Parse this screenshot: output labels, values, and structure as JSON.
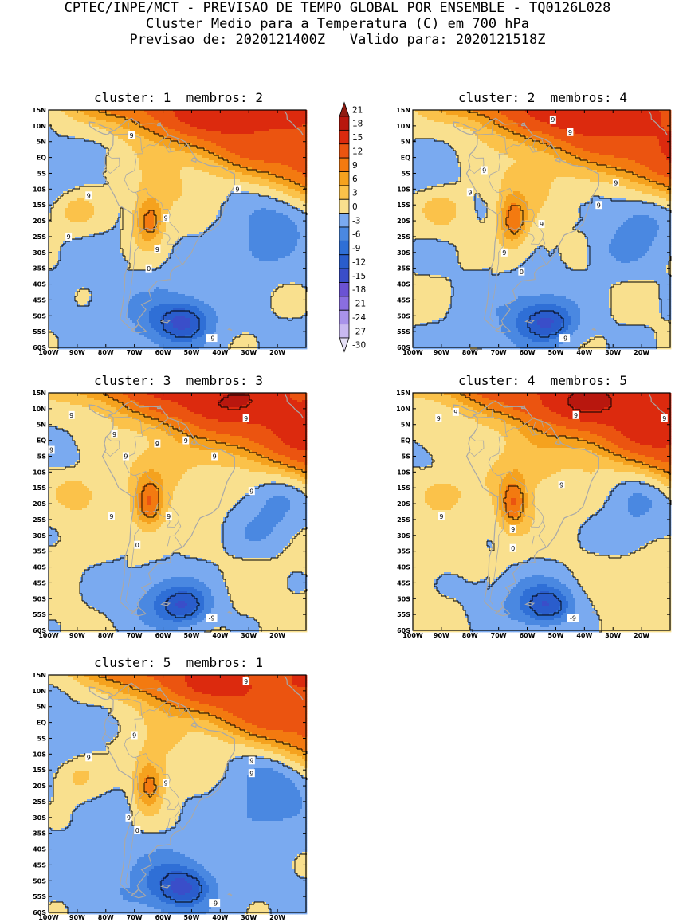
{
  "header": {
    "line1": "CPTEC/INPE/MCT - PREVISAO DE TEMPO GLOBAL POR ENSEMBLE - TQ0126L028",
    "line2": "Cluster Medio para a Temperatura (C) em 700 hPa",
    "line3": "Previsao de: 2020121400Z   Valido para: 2020121518Z"
  },
  "colors": {
    "levels": [
      {
        "min": -30,
        "color": "#e6e1f7"
      },
      {
        "min": -27,
        "color": "#c9b9f1"
      },
      {
        "min": -24,
        "color": "#a993ea"
      },
      {
        "min": -21,
        "color": "#8a6ee0"
      },
      {
        "min": -18,
        "color": "#6b52d3"
      },
      {
        "min": -15,
        "color": "#3a4ec9"
      },
      {
        "min": -12,
        "color": "#2a5dcc"
      },
      {
        "min": -9,
        "color": "#2f6fd6"
      },
      {
        "min": -6,
        "color": "#4a88e1"
      },
      {
        "min": -3,
        "color": "#7aaaf0"
      },
      {
        "min": 0,
        "color": "#f9e08e"
      },
      {
        "min": 3,
        "color": "#fbc24a"
      },
      {
        "min": 6,
        "color": "#f5a21e"
      },
      {
        "min": 9,
        "color": "#f37a10"
      },
      {
        "min": 12,
        "color": "#eb5410"
      },
      {
        "min": 15,
        "color": "#dc2a0e"
      },
      {
        "min": 18,
        "color": "#b8170e"
      },
      {
        "min": 21,
        "color": "#901c12"
      }
    ],
    "coast": "#a8a8a8",
    "contour": "#000000"
  },
  "chart_data": {
    "type": "heatmap",
    "variable": "Temperatura (C) em 700 hPa",
    "colorbar": {
      "ticks": [
        "21",
        "18",
        "15",
        "12",
        "9",
        "6",
        "3",
        "0",
        "-3",
        "-6",
        "-9",
        "-12",
        "-15",
        "-18",
        "-21",
        "-24",
        "-27",
        "-30"
      ]
    },
    "axes": {
      "x_range_lon": [
        -100,
        -10
      ],
      "y_range_lat": [
        -60,
        15
      ],
      "x_ticks": [
        "100W",
        "90W",
        "80W",
        "70W",
        "60W",
        "50W",
        "40W",
        "30W",
        "20W"
      ],
      "y_ticks": [
        "15N",
        "10N",
        "5N",
        "EQ",
        "5S",
        "10S",
        "15S",
        "20S",
        "25S",
        "30S",
        "35S",
        "40S",
        "45S",
        "50S",
        "55S",
        "60S"
      ]
    },
    "panels": [
      {
        "cluster": "1",
        "membros": "2",
        "title_prefix": "cluster: ",
        "title_mid": "  membros: ",
        "warm_shift": 0,
        "labels": [
          {
            "text": "9",
            "lon": -71,
            "lat": 7
          },
          {
            "text": "9",
            "lon": -86,
            "lat": -12
          },
          {
            "text": "9",
            "lon": -34,
            "lat": -10
          },
          {
            "text": "9",
            "lon": -93,
            "lat": -25
          },
          {
            "text": "9",
            "lon": -59,
            "lat": -19
          },
          {
            "text": "9",
            "lon": -62,
            "lat": -29
          },
          {
            "text": "0",
            "lon": -65,
            "lat": -35
          },
          {
            "text": "-9",
            "lon": -43,
            "lat": -57
          }
        ]
      },
      {
        "cluster": "2",
        "membros": "4",
        "title_prefix": "cluster: ",
        "title_mid": "  membros: ",
        "warm_shift": 0.4,
        "labels": [
          {
            "text": "9",
            "lon": -51,
            "lat": 12
          },
          {
            "text": "9",
            "lon": -45,
            "lat": 8
          },
          {
            "text": "9",
            "lon": -75,
            "lat": -4
          },
          {
            "text": "9",
            "lon": -80,
            "lat": -11
          },
          {
            "text": "9",
            "lon": -29,
            "lat": -8
          },
          {
            "text": "9",
            "lon": -35,
            "lat": -15
          },
          {
            "text": "9",
            "lon": -55,
            "lat": -21
          },
          {
            "text": "9",
            "lon": -68,
            "lat": -30
          },
          {
            "text": "0",
            "lon": -62,
            "lat": -36
          },
          {
            "text": "-9",
            "lon": -47,
            "lat": -57
          }
        ]
      },
      {
        "cluster": "3",
        "membros": "3",
        "title_prefix": "cluster: ",
        "title_mid": "  membros: ",
        "warm_shift": 1.0,
        "labels": [
          {
            "text": "9",
            "lon": -92,
            "lat": 8
          },
          {
            "text": "9",
            "lon": -77,
            "lat": 2
          },
          {
            "text": "9",
            "lon": -62,
            "lat": -1
          },
          {
            "text": "9",
            "lon": -52,
            "lat": 0
          },
          {
            "text": "9",
            "lon": -99,
            "lat": -3
          },
          {
            "text": "9",
            "lon": -73,
            "lat": -5
          },
          {
            "text": "9",
            "lon": -31,
            "lat": 7
          },
          {
            "text": "9",
            "lon": -42,
            "lat": -5
          },
          {
            "text": "9",
            "lon": -29,
            "lat": -16
          },
          {
            "text": "9",
            "lon": -78,
            "lat": -24
          },
          {
            "text": "9",
            "lon": -58,
            "lat": -24
          },
          {
            "text": "0",
            "lon": -69,
            "lat": -33
          },
          {
            "text": "-9",
            "lon": -43,
            "lat": -56
          }
        ]
      },
      {
        "cluster": "4",
        "membros": "5",
        "title_prefix": "cluster: ",
        "title_mid": "  membros: ",
        "warm_shift": 1.3,
        "labels": [
          {
            "text": "9",
            "lon": -85,
            "lat": 9
          },
          {
            "text": "9",
            "lon": -91,
            "lat": 7
          },
          {
            "text": "9",
            "lon": -43,
            "lat": 8
          },
          {
            "text": "9",
            "lon": -12,
            "lat": 7
          },
          {
            "text": "9",
            "lon": -48,
            "lat": -14
          },
          {
            "text": "9",
            "lon": -90,
            "lat": -24
          },
          {
            "text": "9",
            "lon": -65,
            "lat": -28
          },
          {
            "text": "0",
            "lon": -65,
            "lat": -34
          },
          {
            "text": "-9",
            "lon": -44,
            "lat": -56
          }
        ]
      },
      {
        "cluster": "5",
        "membros": "1",
        "title_prefix": "cluster: ",
        "title_mid": "  membros: ",
        "warm_shift": -0.3,
        "labels": [
          {
            "text": "9",
            "lon": -31,
            "lat": 13
          },
          {
            "text": "9",
            "lon": -70,
            "lat": -4
          },
          {
            "text": "9",
            "lon": -86,
            "lat": -11
          },
          {
            "text": "9",
            "lon": -29,
            "lat": -12
          },
          {
            "text": "9",
            "lon": -29,
            "lat": -16
          },
          {
            "text": "9",
            "lon": -59,
            "lat": -19
          },
          {
            "text": "9",
            "lon": -72,
            "lat": -30
          },
          {
            "text": "0",
            "lon": -69,
            "lat": -34
          },
          {
            "text": "-9",
            "lon": -42,
            "lat": -57
          }
        ]
      }
    ]
  }
}
